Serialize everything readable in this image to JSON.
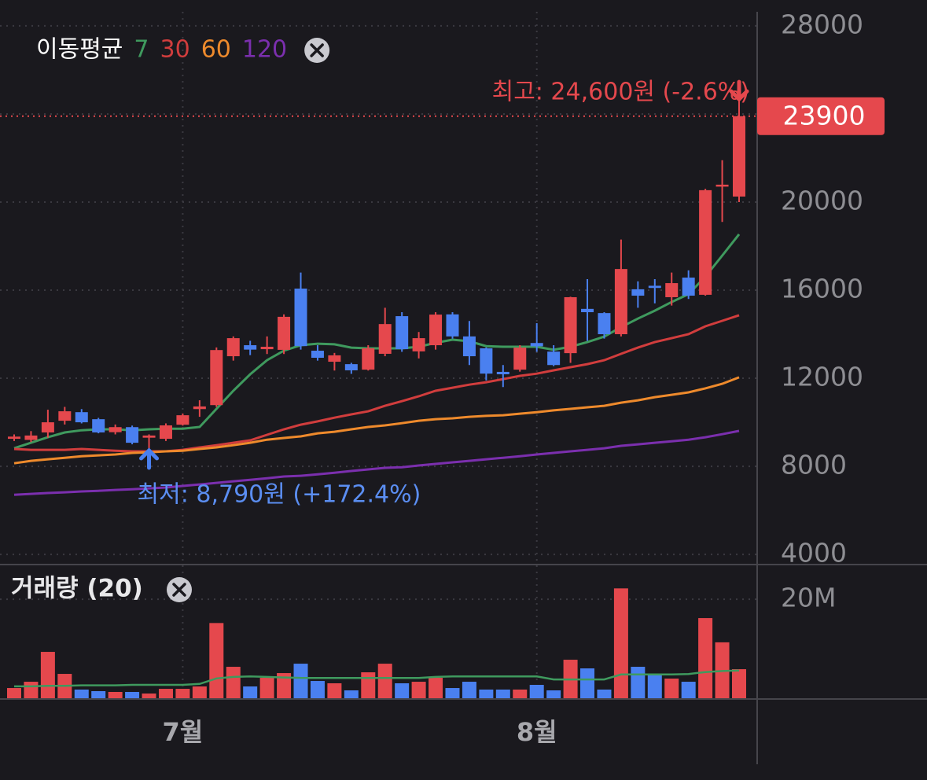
{
  "chart_data": {
    "type": "candlestick",
    "categories": [
      null,
      null,
      null,
      null,
      null,
      null,
      null,
      null,
      null,
      null,
      "7월",
      null,
      null,
      null,
      null,
      null,
      null,
      null,
      null,
      null,
      null,
      null,
      null,
      null,
      null,
      null,
      null,
      null,
      null,
      null,
      null,
      "8월",
      null,
      null,
      null,
      null,
      null,
      null,
      null,
      null,
      null,
      null,
      null,
      null
    ],
    "open": [
      9250,
      9200,
      9540,
      10070,
      10460,
      10140,
      9550,
      9780,
      9300,
      9250,
      9890,
      10600,
      10780,
      13000,
      13500,
      13320,
      13290,
      16070,
      13250,
      12750,
      12640,
      12390,
      13110,
      14820,
      13220,
      13500,
      14900,
      13900,
      13360,
      12290,
      12390,
      13600,
      13210,
      13140,
      15150,
      14960,
      14000,
      16040,
      16200,
      15680,
      16570,
      15790,
      20700,
      20250
    ],
    "high": [
      9450,
      9600,
      10570,
      10700,
      10600,
      10200,
      9900,
      9850,
      9450,
      9950,
      10400,
      11000,
      13400,
      13900,
      13700,
      13900,
      14900,
      16800,
      13500,
      13150,
      12700,
      13500,
      15200,
      15000,
      14100,
      15000,
      15000,
      14600,
      13400,
      12600,
      13500,
      14500,
      13500,
      15700,
      16500,
      15000,
      18300,
      16400,
      16500,
      16800,
      16900,
      20600,
      21900,
      24600
    ],
    "low": [
      9150,
      9100,
      9300,
      9900,
      9950,
      9500,
      9450,
      9000,
      8790,
      9150,
      9850,
      10250,
      10700,
      12800,
      13050,
      13100,
      13100,
      13300,
      12800,
      12350,
      12200,
      12350,
      13000,
      13200,
      12900,
      13300,
      13800,
      12600,
      11900,
      11600,
      12300,
      13200,
      12550,
      12700,
      13700,
      13800,
      13900,
      15200,
      15400,
      15300,
      15600,
      15750,
      19100,
      20000
    ],
    "close": [
      9350,
      9400,
      10000,
      10500,
      10000,
      9540,
      9780,
      9070,
      9400,
      9860,
      10320,
      10720,
      13280,
      13820,
      13300,
      13430,
      14790,
      13460,
      12930,
      13040,
      12360,
      13360,
      14460,
      13320,
      13820,
      14890,
      13900,
      13000,
      12210,
      12180,
      13390,
      13450,
      12600,
      15680,
      15000,
      14000,
      16960,
      15750,
      16100,
      16320,
      15750,
      20540,
      20790,
      23900
    ],
    "up_color": "#e5484d",
    "down_color": "#4a80f0",
    "ylim": [
      3540,
      28640
    ],
    "yticks": [
      4000,
      8000,
      12000,
      16000,
      20000,
      24000,
      28000
    ],
    "grid": true,
    "high_label": "최고: 24,600원 (-2.6%)",
    "low_label": "최저: 8,790원 (+172.4%)",
    "moving_averages": {
      "title": "이동평균",
      "series": [
        {
          "name": "7",
          "color": "#3f9a5e",
          "values": [
            8820,
            9070,
            9320,
            9540,
            9640,
            9680,
            9680,
            9640,
            9680,
            9710,
            9710,
            9790,
            10610,
            11430,
            12180,
            12820,
            13250,
            13500,
            13570,
            13540,
            13390,
            13360,
            13360,
            13360,
            13430,
            13610,
            13750,
            13680,
            13460,
            13430,
            13430,
            13430,
            13290,
            13430,
            13640,
            13890,
            14320,
            14710,
            15070,
            15460,
            15820,
            16610,
            17570,
            18540
          ]
        },
        {
          "name": "30",
          "color": "#d13d3d",
          "values": [
            8790,
            8750,
            8750,
            8750,
            8790,
            8750,
            8710,
            8680,
            8680,
            8680,
            8750,
            8860,
            8960,
            9070,
            9180,
            9430,
            9680,
            9890,
            10040,
            10210,
            10360,
            10500,
            10750,
            10960,
            11180,
            11430,
            11570,
            11710,
            11820,
            11960,
            12110,
            12210,
            12360,
            12500,
            12640,
            12820,
            13110,
            13390,
            13640,
            13820,
            14000,
            14360,
            14610,
            14860
          ]
        },
        {
          "name": "60",
          "color": "#ee8a2c",
          "values": [
            8140,
            8250,
            8320,
            8390,
            8460,
            8500,
            8540,
            8610,
            8640,
            8680,
            8710,
            8790,
            8860,
            8960,
            9070,
            9210,
            9290,
            9360,
            9500,
            9570,
            9680,
            9790,
            9860,
            9960,
            10070,
            10140,
            10180,
            10250,
            10290,
            10320,
            10390,
            10460,
            10540,
            10610,
            10680,
            10750,
            10890,
            11000,
            11140,
            11250,
            11360,
            11540,
            11750,
            12040
          ]
        },
        {
          "name": "120",
          "color": "#7b2fae",
          "values": [
            6710,
            6750,
            6790,
            6820,
            6860,
            6890,
            6930,
            6960,
            7000,
            7040,
            7110,
            7180,
            7250,
            7320,
            7390,
            7460,
            7540,
            7570,
            7640,
            7710,
            7790,
            7860,
            7930,
            7960,
            8040,
            8110,
            8180,
            8250,
            8320,
            8390,
            8460,
            8540,
            8610,
            8680,
            8750,
            8820,
            8930,
            9000,
            9070,
            9140,
            9210,
            9320,
            9460,
            9610
          ]
        }
      ]
    },
    "volume": {
      "title": "거래량 (20)",
      "values": [
        2060000,
        3330000,
        9370000,
        4920000,
        1750000,
        1430000,
        1270000,
        1270000,
        950000,
        1900000,
        1900000,
        2380000,
        15200000,
        6350000,
        2380000,
        4130000,
        5080000,
        6980000,
        3490000,
        3020000,
        1590000,
        5240000,
        6980000,
        3020000,
        3330000,
        4130000,
        2060000,
        3330000,
        1750000,
        1750000,
        1750000,
        2700000,
        1590000,
        7780000,
        6030000,
        1750000,
        22200000,
        6350000,
        4760000,
        3970000,
        3330000,
        16200000,
        11300000,
        5870000
      ],
      "ma_values": [
        2400000,
        2400000,
        2500000,
        2500000,
        2600000,
        2600000,
        2600000,
        2700000,
        2700000,
        2700000,
        2700000,
        2900000,
        4000000,
        4300000,
        4400000,
        4300000,
        4200000,
        4100000,
        4100000,
        4100000,
        4100000,
        4100000,
        4100000,
        4100000,
        4100000,
        4300000,
        4400000,
        4400000,
        4400000,
        4400000,
        4400000,
        4400000,
        3800000,
        3800000,
        3800000,
        3800000,
        4800000,
        4800000,
        4800000,
        4800000,
        4900000,
        5300000,
        5500000,
        5600000
      ],
      "ma_color": "#3f9a5e",
      "ylim": [
        0,
        26700000
      ],
      "yticks": [
        {
          "value": 20000000,
          "label": "20M"
        }
      ]
    }
  }
}
